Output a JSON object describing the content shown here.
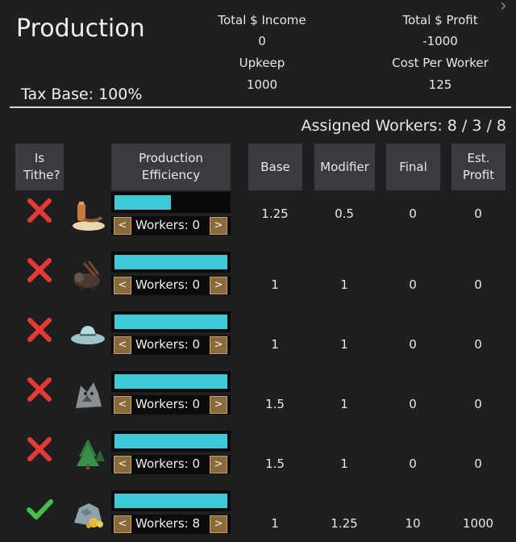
{
  "title": "Production",
  "stats": {
    "total_income_label": "Total $ Income",
    "total_income_value": "0",
    "total_profit_label": "Total $ Profit",
    "total_profit_value": "-1000",
    "upkeep_label": "Upkeep",
    "upkeep_value": "1000",
    "cost_per_worker_label": "Cost Per Worker",
    "cost_per_worker_value": "125"
  },
  "tax_base": "Tax Base: 100%",
  "assigned_workers": "Assigned Workers: 8 / 3 / 8",
  "headers": {
    "is_tithe": "Is Tithe?",
    "production_efficiency": "Production Efficiency",
    "base": "Base",
    "modifier": "Modifier",
    "final": "Final",
    "est_profit": "Est. Profit"
  },
  "rows": [
    {
      "resource_icon": "tobacco-pipe-icon",
      "tithe": false,
      "efficiency": 0.5,
      "workers_label": "Workers: 0",
      "base": "1.25",
      "modifier": "0.5",
      "final": "0",
      "est_profit": "0"
    },
    {
      "resource_icon": "bison-icon",
      "tithe": false,
      "efficiency": 1.0,
      "workers_label": "Workers: 0",
      "base": "1",
      "modifier": "1",
      "final": "0",
      "est_profit": "0"
    },
    {
      "resource_icon": "cowboy-hat-icon",
      "tithe": false,
      "efficiency": 1.0,
      "workers_label": "Workers: 0",
      "base": "1",
      "modifier": "1",
      "final": "0",
      "est_profit": "0"
    },
    {
      "resource_icon": "wolf-fur-icon",
      "tithe": false,
      "efficiency": 1.0,
      "workers_label": "Workers: 0",
      "base": "1.5",
      "modifier": "1",
      "final": "0",
      "est_profit": "0"
    },
    {
      "resource_icon": "forest-icon",
      "tithe": false,
      "efficiency": 1.0,
      "workers_label": "Workers: 0",
      "base": "1.5",
      "modifier": "1",
      "final": "0",
      "est_profit": "0"
    },
    {
      "resource_icon": "ore-gold-icon",
      "tithe": true,
      "efficiency": 1.0,
      "workers_label": "Workers: 8",
      "base": "1",
      "modifier": "1.25",
      "final": "10",
      "est_profit": "1000"
    }
  ],
  "controls": {
    "decrease": "<",
    "increase": ">"
  },
  "colors": {
    "bar": "#3ec9d8",
    "cross": "#e53935",
    "check": "#43c04a",
    "button": "#8b6a3a"
  }
}
